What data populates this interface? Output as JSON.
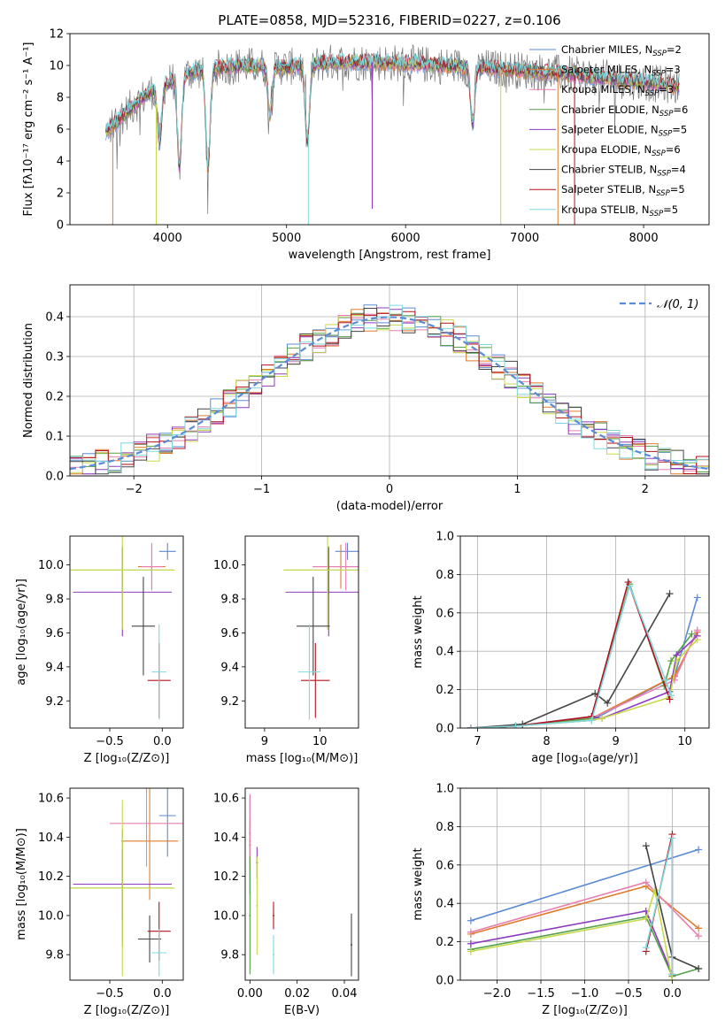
{
  "title": "PLATE=0858, MJD=52316, FIBERID=0227, z=0.106",
  "colors": {
    "chabrier_miles": "#5b8bd6",
    "salpeter_miles": "#e07b2e",
    "kroupa_miles": "#e87fb0",
    "chabrier_elodie": "#55a14a",
    "salpeter_elodie": "#8d3bbf",
    "kroupa_elodie": "#c7d94a",
    "chabrier_stelib": "#444444",
    "salpeter_stelib": "#b3121e",
    "kroupa_stelib": "#7fd8de",
    "data": "#777777",
    "normal": "#5b8bd6"
  },
  "chart_data": [
    {
      "type": "line",
      "title": "PLATE=0858, MJD=52316, FIBERID=0227, z=0.106",
      "xlabel": "wavelength [Angstrom, rest frame]",
      "ylabel": "Flux [fλ10⁻¹⁷ erg cm⁻² s⁻¹ A⁻¹]",
      "xlim": [
        3180,
        8550
      ],
      "ylim": [
        0,
        12
      ],
      "xticks": [
        "4000",
        "5000",
        "6000",
        "7000",
        "8000"
      ],
      "yticks": [
        "0",
        "2",
        "4",
        "6",
        "8",
        "10",
        "12"
      ],
      "legend": "top-right",
      "series": [
        {
          "name": "Chabrier MILES, N_SSP=2",
          "label_main": "Chabrier MILES, N",
          "label_sub": "SSP",
          "label_tail": "=2"
        },
        {
          "name": "Salpeter MILES, N_SSP=3",
          "label_main": "Salpeter MILES, N",
          "label_sub": "SSP",
          "label_tail": "=3"
        },
        {
          "name": "Kroupa MILES, N_SSP=3",
          "label_main": "Kroupa MILES, N",
          "label_sub": "SSP",
          "label_tail": "=3"
        },
        {
          "name": "Chabrier ELODIE, N_SSP=6",
          "label_main": "Chabrier ELODIE, N",
          "label_sub": "SSP",
          "label_tail": "=6"
        },
        {
          "name": "Salpeter ELODIE, N_SSP=5",
          "label_main": "Salpeter ELODIE, N",
          "label_sub": "SSP",
          "label_tail": "=5"
        },
        {
          "name": "Kroupa ELODIE, N_SSP=6",
          "label_main": "Kroupa ELODIE, N",
          "label_sub": "SSP",
          "label_tail": "=6"
        },
        {
          "name": "Chabrier STELIB, N_SSP=4",
          "label_main": "Chabrier STELIB, N",
          "label_sub": "SSP",
          "label_tail": "=4"
        },
        {
          "name": "Salpeter STELIB, N_SSP=5",
          "label_main": "Salpeter STELIB, N",
          "label_sub": "SSP",
          "label_tail": "=5"
        },
        {
          "name": "Kroupa STELIB, N_SSP=5",
          "label_main": "Kroupa STELIB, N",
          "label_sub": "SSP",
          "label_tail": "=5"
        }
      ],
      "continuum": [
        [
          3480,
          5.8
        ],
        [
          3700,
          7.4
        ],
        [
          3900,
          8.6
        ],
        [
          4200,
          9.6
        ],
        [
          4600,
          10.0
        ],
        [
          5000,
          9.9
        ],
        [
          5400,
          10.2
        ],
        [
          5800,
          10.2
        ],
        [
          6300,
          10.0
        ],
        [
          6800,
          9.8
        ],
        [
          7300,
          9.5
        ],
        [
          7800,
          9.1
        ],
        [
          8300,
          8.7
        ]
      ],
      "dips": [
        [
          3933,
          3.5
        ],
        [
          4100,
          5.6
        ],
        [
          4340,
          6.2
        ],
        [
          4861,
          3.0
        ],
        [
          5175,
          4.8
        ],
        [
          6563,
          3.5
        ]
      ],
      "drops": [
        [
          3540,
          0
        ],
        [
          3905,
          0
        ],
        [
          5183,
          0
        ],
        [
          5720,
          1.0
        ],
        [
          6800,
          0
        ],
        [
          7280,
          0
        ],
        [
          7420,
          0
        ]
      ]
    },
    {
      "type": "step",
      "xlabel": "(data-model)/error",
      "ylabel": "Normed distribution",
      "xlim": [
        -2.5,
        2.5
      ],
      "ylim": [
        0,
        0.48
      ],
      "xticks": [
        "−2",
        "−1",
        "0",
        "1",
        "2"
      ],
      "yticks": [
        "0.0",
        "0.1",
        "0.2",
        "0.3",
        "0.4"
      ],
      "legend": "top-right",
      "legend_label": "𝒩(0, 1)",
      "bin_width": 0.1
    },
    {
      "type": "errorbar",
      "xlabel": "Z [log₁₀(Z/Z⊙)]",
      "ylabel": "age  [log₁₀(age/yr)]",
      "xlim": [
        -0.88,
        0.2
      ],
      "ylim": [
        9.04,
        10.17
      ],
      "xticks": [
        "−0.5",
        "0.0"
      ],
      "yticks": [
        "9.2",
        "9.4",
        "9.6",
        "9.8",
        "10.0"
      ],
      "points": [
        {
          "x": 0.05,
          "xerr": 0.08,
          "y": 10.08,
          "yerr": 0.05
        },
        {
          "x": -0.1,
          "xerr": 0.13,
          "y": 9.99,
          "yerr": 0.13
        },
        {
          "x": -0.1,
          "xerr": 0.1,
          "y": 9.99,
          "yerr": 0.14
        },
        {
          "x": -0.38,
          "xerr": 0.48,
          "y": 9.97,
          "yerr": 0.14
        },
        {
          "x": -0.38,
          "xerr": 0.47,
          "y": 9.84,
          "yerr": 0.26
        },
        {
          "x": -0.38,
          "xerr": 0.5,
          "y": 9.97,
          "yerr": 0.35
        },
        {
          "x": -0.18,
          "xerr": 0.11,
          "y": 9.64,
          "yerr": 0.29
        },
        {
          "x": -0.03,
          "xerr": 0.11,
          "y": 9.32,
          "yerr": 0.22
        },
        {
          "x": -0.03,
          "xerr": 0.07,
          "y": 9.37,
          "yerr": 0.28
        }
      ]
    },
    {
      "type": "errorbar",
      "xlabel": "mass [log₁₀(M/M⊙)]",
      "ylabel": "",
      "xlim": [
        8.65,
        10.7
      ],
      "ylim": [
        9.04,
        10.17
      ],
      "xticks": [
        "9",
        "10"
      ],
      "yticks": [
        "9.2",
        "9.4",
        "9.6",
        "9.8",
        "10.0"
      ],
      "points": [
        {
          "x": 10.5,
          "xerr": 0.22,
          "y": 10.08,
          "yerr": 0.05
        },
        {
          "x": 10.38,
          "xerr": 0.5,
          "y": 9.99,
          "yerr": 0.13
        },
        {
          "x": 10.47,
          "xerr": 0.6,
          "y": 9.99,
          "yerr": 0.14
        },
        {
          "x": 10.16,
          "xerr": 0.78,
          "y": 9.97,
          "yerr": 0.14
        },
        {
          "x": 10.16,
          "xerr": 0.78,
          "y": 9.84,
          "yerr": 0.26
        },
        {
          "x": 10.14,
          "xerr": 0.8,
          "y": 9.97,
          "yerr": 0.35
        },
        {
          "x": 9.88,
          "xerr": 0.3,
          "y": 9.64,
          "yerr": 0.29
        },
        {
          "x": 9.92,
          "xerr": 0.26,
          "y": 9.32,
          "yerr": 0.22
        },
        {
          "x": 9.81,
          "xerr": 0.2,
          "y": 9.37,
          "yerr": 0.28
        }
      ]
    },
    {
      "type": "line",
      "xlabel": "age  [log₁₀(age/yr)]",
      "ylabel": "mass weight",
      "xlim": [
        6.75,
        10.35
      ],
      "ylim": [
        0,
        1.0
      ],
      "xticks": [
        "7",
        "8",
        "9",
        "10"
      ],
      "yticks": [
        "0.0",
        "0.2",
        "0.4",
        "0.6",
        "0.8",
        "1.0"
      ],
      "grid": true,
      "series": [
        {
          "x": [
            6.9,
            7.55,
            8.65,
            9.85,
            10.18
          ],
          "y": [
            0.0,
            0.01,
            0.04,
            0.27,
            0.68
          ]
        },
        {
          "x": [
            6.9,
            7.55,
            8.65,
            9.85,
            10.18
          ],
          "y": [
            0.0,
            0.01,
            0.05,
            0.27,
            0.5
          ]
        },
        {
          "x": [
            6.9,
            7.55,
            8.65,
            9.85,
            10.18
          ],
          "y": [
            0.0,
            0.01,
            0.05,
            0.25,
            0.51
          ]
        },
        {
          "x": [
            6.9,
            7.55,
            8.65,
            9.2,
            9.7,
            9.8,
            10.1
          ],
          "y": [
            0.0,
            0.01,
            0.05,
            0.75,
            0.22,
            0.35,
            0.49
          ]
        },
        {
          "x": [
            6.9,
            7.55,
            8.65,
            8.8,
            9.78,
            9.88,
            10.18
          ],
          "y": [
            0.0,
            0.01,
            0.06,
            0.05,
            0.19,
            0.38,
            0.48
          ]
        },
        {
          "x": [
            6.9,
            7.55,
            8.65,
            8.8,
            9.78,
            9.88,
            10.18
          ],
          "y": [
            0.0,
            0.01,
            0.04,
            0.05,
            0.16,
            0.35,
            0.46
          ]
        },
        {
          "x": [
            6.9,
            7.65,
            8.7,
            8.88,
            9.78
          ],
          "y": [
            0.0,
            0.02,
            0.18,
            0.13,
            0.7
          ]
        },
        {
          "x": [
            6.9,
            7.55,
            8.65,
            9.18,
            9.78
          ],
          "y": [
            0.0,
            0.01,
            0.06,
            0.76,
            0.15
          ]
        },
        {
          "x": [
            6.9,
            7.55,
            8.65,
            9.2,
            9.72,
            9.8
          ],
          "y": [
            0.0,
            0.01,
            0.04,
            0.74,
            0.25,
            0.17
          ]
        }
      ]
    },
    {
      "type": "errorbar",
      "xlabel": "Z [log₁₀(Z/Z⊙)]",
      "ylabel": "mass [log₁₀(M/M⊙)]",
      "xlim": [
        -0.88,
        0.2
      ],
      "ylim": [
        9.67,
        10.65
      ],
      "xticks": [
        "−0.5",
        "0.0"
      ],
      "yticks": [
        "9.8",
        "10.0",
        "10.2",
        "10.4",
        "10.6"
      ],
      "points": [
        {
          "x": 0.05,
          "xerr": 0.08,
          "y": 10.51,
          "yerr": 0.21
        },
        {
          "x": -0.12,
          "xerr": 0.27,
          "y": 10.38,
          "yerr": 0.3
        },
        {
          "x": -0.15,
          "xerr": 0.35,
          "y": 10.47,
          "yerr": 0.22
        },
        {
          "x": -0.38,
          "xerr": 0.48,
          "y": 10.14,
          "yerr": 0.3
        },
        {
          "x": -0.38,
          "xerr": 0.47,
          "y": 10.16,
          "yerr": 0.18
        },
        {
          "x": -0.38,
          "xerr": 0.5,
          "y": 10.14,
          "yerr": 0.45
        },
        {
          "x": -0.12,
          "xerr": 0.11,
          "y": 9.88,
          "yerr": 0.12
        },
        {
          "x": -0.03,
          "xerr": 0.11,
          "y": 9.92,
          "yerr": 0.15
        },
        {
          "x": -0.03,
          "xerr": 0.07,
          "y": 9.81,
          "yerr": 0.12
        }
      ]
    },
    {
      "type": "errorbar",
      "xlabel": "E(B-V)",
      "ylabel": "",
      "xlim": [
        -0.002,
        0.046
      ],
      "ylim": [
        9.67,
        10.65
      ],
      "xticks": [
        "0.00",
        "0.02",
        "0.04"
      ],
      "yticks": [
        "9.8",
        "10.0",
        "10.2",
        "10.4",
        "10.6"
      ],
      "points": [
        {
          "x": 0.0,
          "xerr": 0.0004,
          "y": 10.36,
          "yerr": 0.25
        },
        {
          "x": 0.0,
          "xerr": 0.0004,
          "y": 10.38,
          "yerr": 0.12
        },
        {
          "x": 0.0,
          "xerr": 0.0004,
          "y": 10.42,
          "yerr": 0.2
        },
        {
          "x": 0.0,
          "xerr": 0.0004,
          "y": 10.0,
          "yerr": 0.3
        },
        {
          "x": 0.003,
          "xerr": 0.0004,
          "y": 10.27,
          "yerr": 0.08
        },
        {
          "x": 0.003,
          "xerr": 0.0004,
          "y": 10.05,
          "yerr": 0.25
        },
        {
          "x": 0.043,
          "xerr": 0.0004,
          "y": 9.85,
          "yerr": 0.16
        },
        {
          "x": 0.01,
          "xerr": 0.0004,
          "y": 10.0,
          "yerr": 0.07
        },
        {
          "x": 0.01,
          "xerr": 0.0004,
          "y": 9.8,
          "yerr": 0.1
        }
      ]
    },
    {
      "type": "line",
      "xlabel": "Z [log₁₀(Z/Z⊙)]",
      "ylabel": "mass weight",
      "xlim": [
        -2.42,
        0.42
      ],
      "ylim": [
        0,
        1.0
      ],
      "xticks": [
        "−2.0",
        "−1.5",
        "−1.0",
        "−0.5",
        "0.0"
      ],
      "yticks": [
        "0.0",
        "0.2",
        "0.4",
        "0.6",
        "0.8",
        "1.0"
      ],
      "grid": true,
      "series": [
        {
          "x": [
            -2.3,
            0.3
          ],
          "y": [
            0.31,
            0.68
          ]
        },
        {
          "x": [
            -2.3,
            -0.3,
            0.3
          ],
          "y": [
            0.24,
            0.49,
            0.27
          ]
        },
        {
          "x": [
            -2.3,
            -0.3,
            0.3
          ],
          "y": [
            0.25,
            0.51,
            0.23
          ]
        },
        {
          "x": [
            -2.3,
            -0.3,
            0.0,
            0.3
          ],
          "y": [
            0.16,
            0.33,
            0.02,
            0.06
          ]
        },
        {
          "x": [
            -2.3,
            -0.3,
            0.0
          ],
          "y": [
            0.19,
            0.36,
            0.03
          ]
        },
        {
          "x": [
            -2.3,
            -0.3,
            -0.2,
            0.0
          ],
          "y": [
            0.15,
            0.32,
            0.47,
            0.0
          ]
        },
        {
          "x": [
            -0.3,
            0.0,
            0.3
          ],
          "y": [
            0.7,
            0.12,
            0.06
          ]
        },
        {
          "x": [
            -0.3,
            0.0,
            0.0
          ],
          "y": [
            0.15,
            0.76,
            0.03
          ]
        },
        {
          "x": [
            -0.3,
            0.0,
            0.0
          ],
          "y": [
            0.17,
            0.74,
            0.03
          ]
        }
      ]
    }
  ]
}
